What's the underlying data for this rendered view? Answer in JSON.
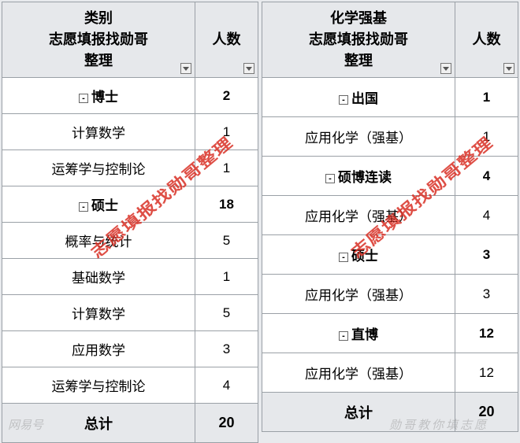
{
  "left_table": {
    "header_cat": "类别\n志愿填报找勋哥\n整理",
    "header_count": "人数",
    "rows": [
      {
        "type": "group",
        "label": "博士",
        "count": "2"
      },
      {
        "type": "item",
        "label": "计算数学",
        "count": "1"
      },
      {
        "type": "item",
        "label": "运筹学与控制论",
        "count": "1"
      },
      {
        "type": "group",
        "label": "硕士",
        "count": "18"
      },
      {
        "type": "item",
        "label": "概率与统计",
        "count": "5"
      },
      {
        "type": "item",
        "label": "基础数学",
        "count": "1"
      },
      {
        "type": "item",
        "label": "计算数学",
        "count": "5"
      },
      {
        "type": "item",
        "label": "应用数学",
        "count": "3"
      },
      {
        "type": "item",
        "label": "运筹学与控制论",
        "count": "4"
      }
    ],
    "total_label": "总计",
    "total_count": "20"
  },
  "right_table": {
    "header_cat": "化学强基\n志愿填报找勋哥\n整理",
    "header_count": "人数",
    "rows": [
      {
        "type": "group",
        "label": "出国",
        "count": "1"
      },
      {
        "type": "item",
        "label": "应用化学（强基）",
        "count": "1"
      },
      {
        "type": "group",
        "label": "硕博连读",
        "count": "4"
      },
      {
        "type": "item",
        "label": "应用化学（强基）",
        "count": "4"
      },
      {
        "type": "group",
        "label": "硕士",
        "count": "3"
      },
      {
        "type": "item",
        "label": "应用化学（强基）",
        "count": "3"
      },
      {
        "type": "group",
        "label": "直博",
        "count": "12"
      },
      {
        "type": "item",
        "label": "应用化学（强基）",
        "count": "12"
      }
    ],
    "total_label": "总计",
    "total_count": "20"
  },
  "watermark_text": "志愿填报找勋哥整理",
  "footer_left": "网易号",
  "footer_right": "勋哥教你填志愿",
  "colors": {
    "bg": "#e8eaed",
    "header_bg": "#e6e8eb",
    "border": "#9aa0a6",
    "watermark": "#d93025"
  }
}
